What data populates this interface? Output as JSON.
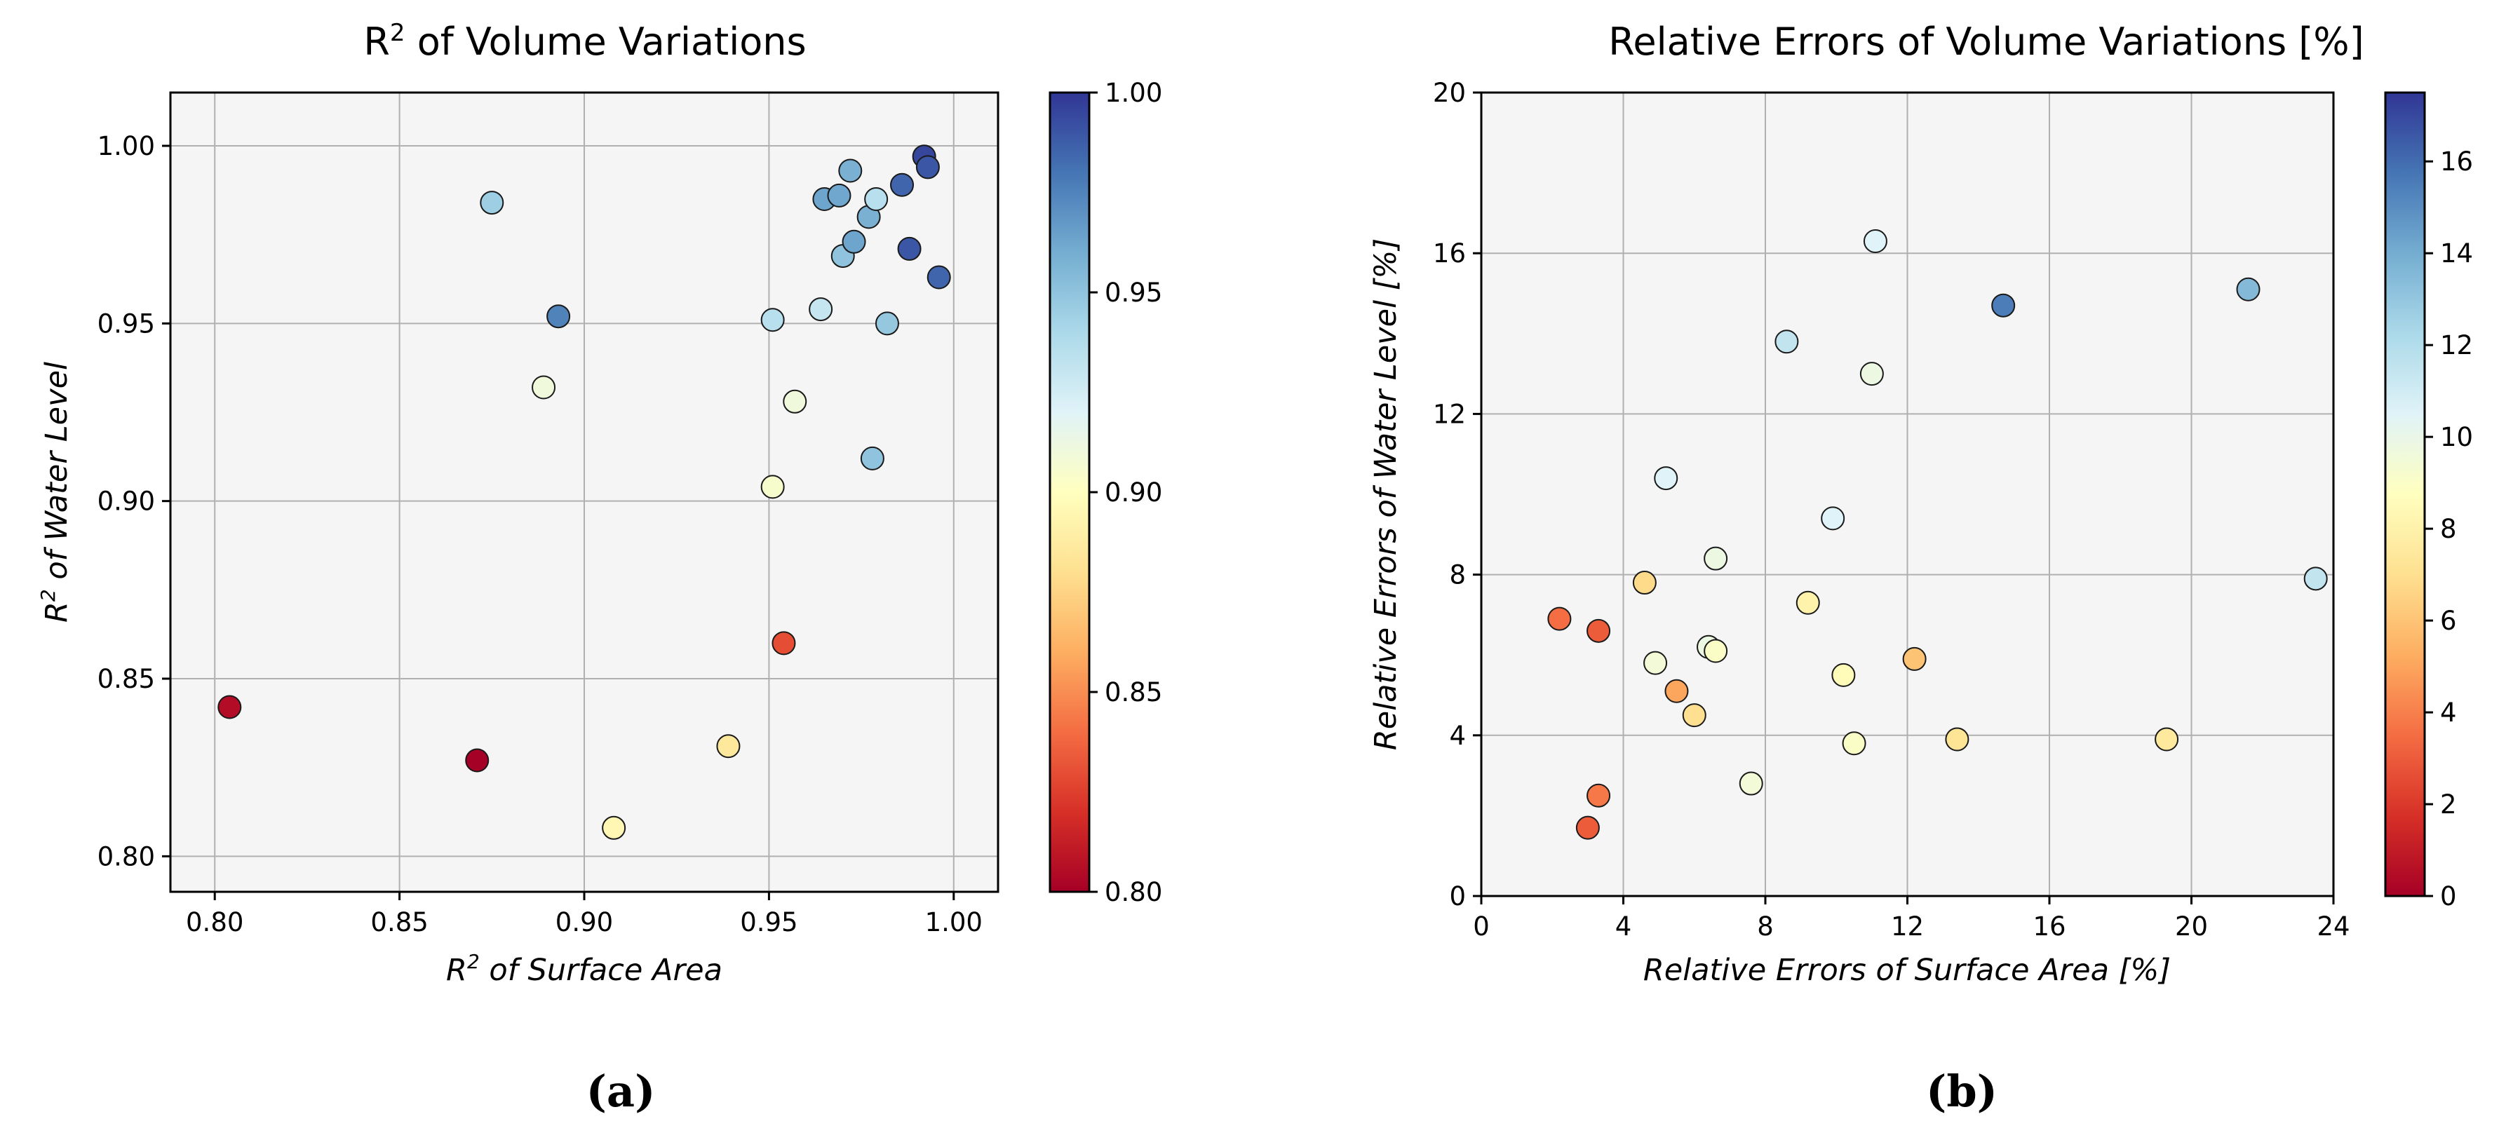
{
  "colormap": {
    "name": "RdYlBu",
    "stops": [
      "#a50026",
      "#d73027",
      "#f46d43",
      "#fdae61",
      "#fee090",
      "#ffffbf",
      "#e0f3f8",
      "#abd9e9",
      "#74add1",
      "#4575b4",
      "#313695"
    ]
  },
  "colors": {
    "plot_background": "#f5f5f5",
    "grid": "#b0b0b0",
    "marker_edge": "#1a1a1a"
  },
  "panels": [
    {
      "label": "(a)"
    },
    {
      "label": "(b)"
    }
  ],
  "chart_data": [
    {
      "type": "scatter",
      "title_main": "R",
      "title_sup": "2",
      "title_rest": " of Volume Variations",
      "xlabel_main": "R",
      "xlabel_sup": "2",
      "xlabel_rest": " of Surface Area",
      "ylabel_main": "R",
      "ylabel_sup": "2",
      "ylabel_rest": " of Water Level",
      "xlim": [
        0.788,
        1.012
      ],
      "ylim": [
        0.79,
        1.015
      ],
      "xticks": [
        0.8,
        0.85,
        0.9,
        0.95,
        1.0
      ],
      "xtick_labels": [
        "0.80",
        "0.85",
        "0.90",
        "0.95",
        "1.00"
      ],
      "yticks": [
        0.8,
        0.85,
        0.9,
        0.95,
        1.0
      ],
      "ytick_labels": [
        "0.80",
        "0.85",
        "0.90",
        "0.95",
        "1.00"
      ],
      "grid": true,
      "colorbar": {
        "range": [
          0.8,
          1.0
        ],
        "ticks": [
          0.8,
          0.85,
          0.9,
          0.95,
          1.0
        ],
        "tick_labels": [
          "0.80",
          "0.85",
          "0.90",
          "0.95",
          "1.00"
        ]
      },
      "points": [
        {
          "x": 0.804,
          "y": 0.842,
          "c": 0.805
        },
        {
          "x": 0.871,
          "y": 0.827,
          "c": 0.8
        },
        {
          "x": 0.875,
          "y": 0.984,
          "c": 0.945
        },
        {
          "x": 0.889,
          "y": 0.932,
          "c": 0.91
        },
        {
          "x": 0.893,
          "y": 0.952,
          "c": 0.975
        },
        {
          "x": 0.908,
          "y": 0.808,
          "c": 0.895
        },
        {
          "x": 0.939,
          "y": 0.831,
          "c": 0.885
        },
        {
          "x": 0.951,
          "y": 0.951,
          "c": 0.935
        },
        {
          "x": 0.951,
          "y": 0.904,
          "c": 0.905
        },
        {
          "x": 0.954,
          "y": 0.86,
          "c": 0.83
        },
        {
          "x": 0.957,
          "y": 0.928,
          "c": 0.91
        },
        {
          "x": 0.964,
          "y": 0.954,
          "c": 0.93
        },
        {
          "x": 0.965,
          "y": 0.985,
          "c": 0.963
        },
        {
          "x": 0.969,
          "y": 0.986,
          "c": 0.962
        },
        {
          "x": 0.97,
          "y": 0.969,
          "c": 0.95
        },
        {
          "x": 0.972,
          "y": 0.993,
          "c": 0.958
        },
        {
          "x": 0.973,
          "y": 0.973,
          "c": 0.963
        },
        {
          "x": 0.977,
          "y": 0.98,
          "c": 0.958
        },
        {
          "x": 0.978,
          "y": 0.912,
          "c": 0.95
        },
        {
          "x": 0.979,
          "y": 0.985,
          "c": 0.935
        },
        {
          "x": 0.982,
          "y": 0.95,
          "c": 0.948
        },
        {
          "x": 0.986,
          "y": 0.989,
          "c": 0.985
        },
        {
          "x": 0.988,
          "y": 0.971,
          "c": 0.99
        },
        {
          "x": 0.992,
          "y": 0.997,
          "c": 0.995
        },
        {
          "x": 0.993,
          "y": 0.994,
          "c": 0.99
        },
        {
          "x": 0.996,
          "y": 0.963,
          "c": 0.985
        }
      ]
    },
    {
      "type": "scatter",
      "title": "Relative Errors of Volume Variations [%]",
      "xlabel": "Relative Errors of Surface Area [%]",
      "ylabel": "Relative Errors of Water Level [%]",
      "xlim": [
        0,
        24
      ],
      "ylim": [
        0,
        20
      ],
      "xticks": [
        0,
        4,
        8,
        12,
        16,
        20,
        24
      ],
      "xtick_labels": [
        "0",
        "4",
        "8",
        "12",
        "16",
        "20",
        "24"
      ],
      "yticks": [
        0,
        4,
        8,
        12,
        16,
        20
      ],
      "ytick_labels": [
        "0",
        "4",
        "8",
        "12",
        "16",
        "20"
      ],
      "grid": true,
      "colorbar": {
        "range": [
          0,
          17.5
        ],
        "ticks": [
          0,
          2,
          4,
          6,
          8,
          10,
          12,
          14,
          16
        ],
        "tick_labels": [
          "0",
          "2",
          "4",
          "6",
          "8",
          "10",
          "12",
          "14",
          "16"
        ]
      },
      "points": [
        {
          "x": 2.2,
          "y": 6.9,
          "c": 3.5
        },
        {
          "x": 3.0,
          "y": 1.7,
          "c": 3.0
        },
        {
          "x": 3.3,
          "y": 2.5,
          "c": 3.8
        },
        {
          "x": 3.3,
          "y": 6.6,
          "c": 3.0
        },
        {
          "x": 4.6,
          "y": 7.8,
          "c": 6.8
        },
        {
          "x": 4.9,
          "y": 5.8,
          "c": 9.5
        },
        {
          "x": 5.2,
          "y": 10.4,
          "c": 10.5
        },
        {
          "x": 5.5,
          "y": 5.1,
          "c": 5.0
        },
        {
          "x": 6.0,
          "y": 4.5,
          "c": 7.0
        },
        {
          "x": 6.4,
          "y": 6.2,
          "c": 9.8
        },
        {
          "x": 6.6,
          "y": 6.1,
          "c": 9.0
        },
        {
          "x": 6.6,
          "y": 8.4,
          "c": 9.8
        },
        {
          "x": 7.6,
          "y": 2.8,
          "c": 9.5
        },
        {
          "x": 8.6,
          "y": 13.8,
          "c": 11.5
        },
        {
          "x": 9.2,
          "y": 7.3,
          "c": 8.0
        },
        {
          "x": 9.9,
          "y": 9.4,
          "c": 10.5
        },
        {
          "x": 10.2,
          "y": 5.5,
          "c": 8.5
        },
        {
          "x": 10.5,
          "y": 3.8,
          "c": 9.0
        },
        {
          "x": 11.0,
          "y": 13.0,
          "c": 9.8
        },
        {
          "x": 11.1,
          "y": 16.3,
          "c": 10.5
        },
        {
          "x": 12.2,
          "y": 5.9,
          "c": 6.0
        },
        {
          "x": 13.4,
          "y": 3.9,
          "c": 7.2
        },
        {
          "x": 14.7,
          "y": 14.7,
          "c": 15.5
        },
        {
          "x": 19.3,
          "y": 3.9,
          "c": 7.5
        },
        {
          "x": 21.6,
          "y": 15.1,
          "c": 13.5
        },
        {
          "x": 23.5,
          "y": 7.9,
          "c": 11.5
        }
      ]
    }
  ]
}
